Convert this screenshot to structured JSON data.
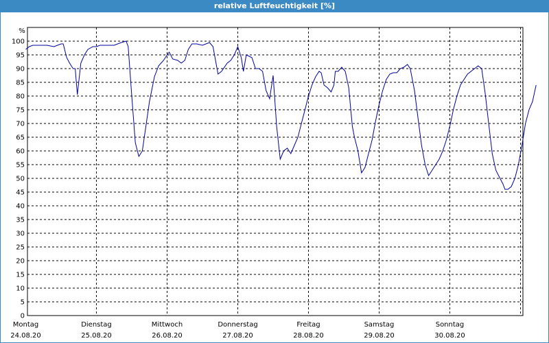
{
  "window": {
    "title": "relative Luftfeuchtigkeit [%]"
  },
  "colors": {
    "title_bar": "#3c8ac4",
    "line": "#0000a0",
    "grid": "#000000"
  },
  "chart_data": {
    "type": "line",
    "title": "relative Luftfeuchtigkeit [%]",
    "ylabel": "%",
    "xlabel": "",
    "ylim": [
      0,
      105
    ],
    "yticks": [
      0,
      5,
      10,
      15,
      20,
      25,
      30,
      35,
      40,
      45,
      50,
      55,
      60,
      65,
      70,
      75,
      80,
      85,
      90,
      95,
      100
    ],
    "xlim": [
      0,
      7
    ],
    "x_unit": "days",
    "x_ticks": [
      {
        "day": "Montag",
        "date": "24.08.20"
      },
      {
        "day": "Dienstag",
        "date": "25.08.20"
      },
      {
        "day": "Mittwoch",
        "date": "26.08.20"
      },
      {
        "day": "Donnerstag",
        "date": "27.08.20"
      },
      {
        "day": "Freitag",
        "date": "28.08.20"
      },
      {
        "day": "Samstag",
        "date": "29.08.20"
      },
      {
        "day": "Sonntag",
        "date": "30.08.20"
      }
    ],
    "grid": true,
    "series": [
      {
        "values": [
          [
            0.0,
            97
          ],
          [
            0.05,
            98
          ],
          [
            0.1,
            98.5
          ],
          [
            0.2,
            98.5
          ],
          [
            0.3,
            98.5
          ],
          [
            0.4,
            98
          ],
          [
            0.45,
            98.5
          ],
          [
            0.5,
            99
          ],
          [
            0.53,
            99
          ],
          [
            0.58,
            94
          ],
          [
            0.62,
            92
          ],
          [
            0.67,
            90
          ],
          [
            0.7,
            90
          ],
          [
            0.73,
            80.5
          ],
          [
            0.78,
            92
          ],
          [
            0.83,
            95
          ],
          [
            0.88,
            97
          ],
          [
            0.95,
            98
          ],
          [
            1.0,
            98
          ],
          [
            1.05,
            98.5
          ],
          [
            1.15,
            98.5
          ],
          [
            1.25,
            98.5
          ],
          [
            1.35,
            99.5
          ],
          [
            1.42,
            100
          ],
          [
            1.45,
            98
          ],
          [
            1.5,
            80
          ],
          [
            1.55,
            63
          ],
          [
            1.6,
            58
          ],
          [
            1.65,
            60
          ],
          [
            1.7,
            69
          ],
          [
            1.75,
            78
          ],
          [
            1.82,
            87
          ],
          [
            1.88,
            91
          ],
          [
            1.95,
            93
          ],
          [
            2.0,
            95
          ],
          [
            2.03,
            96
          ],
          [
            2.08,
            93.5
          ],
          [
            2.15,
            93
          ],
          [
            2.2,
            92
          ],
          [
            2.25,
            93
          ],
          [
            2.3,
            97
          ],
          [
            2.35,
            99
          ],
          [
            2.42,
            99
          ],
          [
            2.5,
            98.5
          ],
          [
            2.6,
            99.5
          ],
          [
            2.65,
            98
          ],
          [
            2.72,
            88
          ],
          [
            2.77,
            89
          ],
          [
            2.85,
            92
          ],
          [
            2.9,
            93
          ],
          [
            2.95,
            95
          ],
          [
            3.0,
            98
          ],
          [
            3.05,
            94
          ],
          [
            3.08,
            89
          ],
          [
            3.12,
            95
          ],
          [
            3.2,
            94
          ],
          [
            3.25,
            90
          ],
          [
            3.3,
            90
          ],
          [
            3.35,
            89
          ],
          [
            3.4,
            82
          ],
          [
            3.45,
            79
          ],
          [
            3.5,
            87.5
          ],
          [
            3.55,
            69
          ],
          [
            3.6,
            57
          ],
          [
            3.65,
            60
          ],
          [
            3.7,
            61
          ],
          [
            3.75,
            59
          ],
          [
            3.8,
            62
          ],
          [
            3.85,
            65
          ],
          [
            3.9,
            70
          ],
          [
            3.95,
            75
          ],
          [
            4.0,
            80
          ],
          [
            4.05,
            84
          ],
          [
            4.1,
            87
          ],
          [
            4.15,
            89
          ],
          [
            4.18,
            88.5
          ],
          [
            4.22,
            84
          ],
          [
            4.27,
            83
          ],
          [
            4.32,
            81.5
          ],
          [
            4.36,
            84
          ],
          [
            4.38,
            89
          ],
          [
            4.42,
            89
          ],
          [
            4.47,
            90.5
          ],
          [
            4.52,
            89
          ],
          [
            4.57,
            83
          ],
          [
            4.62,
            69
          ],
          [
            4.65,
            65
          ],
          [
            4.7,
            60
          ],
          [
            4.75,
            52
          ],
          [
            4.8,
            54
          ],
          [
            4.85,
            59
          ],
          [
            4.9,
            64
          ],
          [
            4.95,
            71
          ],
          [
            5.0,
            77
          ],
          [
            5.05,
            82
          ],
          [
            5.1,
            86
          ],
          [
            5.15,
            88
          ],
          [
            5.2,
            88.5
          ],
          [
            5.25,
            88.5
          ],
          [
            5.3,
            90
          ],
          [
            5.35,
            90.5
          ],
          [
            5.4,
            91.5
          ],
          [
            5.44,
            90
          ],
          [
            5.5,
            82
          ],
          [
            5.55,
            72
          ],
          [
            5.6,
            62
          ],
          [
            5.65,
            55
          ],
          [
            5.7,
            51
          ],
          [
            5.75,
            53
          ],
          [
            5.8,
            55
          ],
          [
            5.85,
            57
          ],
          [
            5.9,
            60
          ],
          [
            5.95,
            64
          ],
          [
            6.0,
            69
          ],
          [
            6.05,
            75
          ],
          [
            6.1,
            80
          ],
          [
            6.15,
            84
          ],
          [
            6.2,
            86
          ],
          [
            6.25,
            88
          ],
          [
            6.3,
            89
          ],
          [
            6.35,
            90
          ],
          [
            6.4,
            91
          ],
          [
            6.45,
            90
          ],
          [
            6.5,
            81
          ],
          [
            6.55,
            70
          ],
          [
            6.6,
            59
          ],
          [
            6.65,
            53
          ],
          [
            6.7,
            50.5
          ],
          [
            6.75,
            48
          ],
          [
            6.78,
            46
          ],
          [
            6.82,
            46
          ],
          [
            6.87,
            47
          ],
          [
            6.92,
            50
          ],
          [
            6.97,
            55
          ],
          [
            7.02,
            62
          ],
          [
            7.07,
            70
          ],
          [
            7.12,
            75
          ],
          [
            7.17,
            78
          ],
          [
            7.22,
            84
          ]
        ]
      }
    ]
  }
}
